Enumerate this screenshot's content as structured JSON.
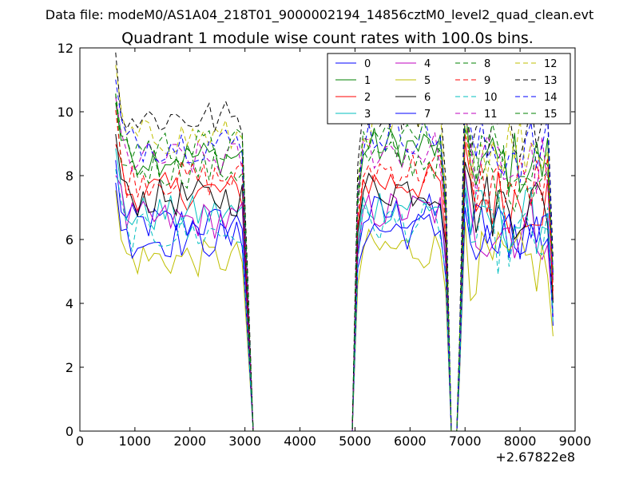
{
  "chart_data": {
    "type": "line",
    "suptitle": "Data file: modeM0/AS1A04_218T01_9000002194_14856cztM0_level2_quad_clean.evt",
    "title": "Quadrant 1 module wise count rates with 100.0s bins.",
    "xlabel": "",
    "ylabel": "",
    "offset_label": "+2.67822e8",
    "xlim": [
      0,
      9000
    ],
    "ylim": [
      0,
      12
    ],
    "xticks": [
      0,
      1000,
      2000,
      3000,
      4000,
      5000,
      6000,
      7000,
      8000,
      9000
    ],
    "xtick_labels": [
      "0",
      "1000",
      "2000",
      "3000",
      "4000",
      "5000",
      "6000",
      "7000",
      "8000",
      "9000"
    ],
    "yticks": [
      0,
      2,
      4,
      6,
      8,
      10,
      12
    ],
    "ytick_labels": [
      "0",
      "2",
      "4",
      "6",
      "8",
      "10",
      "12"
    ],
    "legend_location": "top-right",
    "x_segments": [
      [
        650,
        3000,
        100
      ],
      [
        3050,
        5000,
        100
      ],
      [
        5050,
        6600,
        100
      ],
      [
        6650,
        6850,
        100
      ],
      [
        6900,
        8600,
        100
      ]
    ],
    "series": [
      {
        "name": "0",
        "color": "#0000ff",
        "style": "solid",
        "level": 6.5
      },
      {
        "name": "1",
        "color": "#008000",
        "style": "solid",
        "level": 8.6
      },
      {
        "name": "2",
        "color": "#ff0000",
        "style": "solid",
        "level": 7.5
      },
      {
        "name": "3",
        "color": "#00bfbf",
        "style": "solid",
        "level": 6.8
      },
      {
        "name": "4",
        "color": "#bf00bf",
        "style": "solid",
        "level": 6.6
      },
      {
        "name": "5",
        "color": "#bfbf00",
        "style": "solid",
        "level": 5.4
      },
      {
        "name": "6",
        "color": "#000000",
        "style": "solid",
        "level": 7.3
      },
      {
        "name": "7",
        "color": "#0000ff",
        "style": "solid",
        "level": 6.0
      },
      {
        "name": "8",
        "color": "#008000",
        "style": "dashed",
        "level": 8.2
      },
      {
        "name": "9",
        "color": "#ff0000",
        "style": "dashed",
        "level": 7.9
      },
      {
        "name": "10",
        "color": "#00bfbf",
        "style": "dashed",
        "level": 6.2
      },
      {
        "name": "11",
        "color": "#bf00bf",
        "style": "dashed",
        "level": 8.5
      },
      {
        "name": "12",
        "color": "#bfbf00",
        "style": "dashed",
        "level": 9.2
      },
      {
        "name": "13",
        "color": "#000000",
        "style": "dashed",
        "level": 9.8
      },
      {
        "name": "14",
        "color": "#0000ff",
        "style": "dashed",
        "level": 9.0
      },
      {
        "name": "15",
        "color": "#008000",
        "style": "dashed",
        "level": 8.9
      }
    ]
  }
}
